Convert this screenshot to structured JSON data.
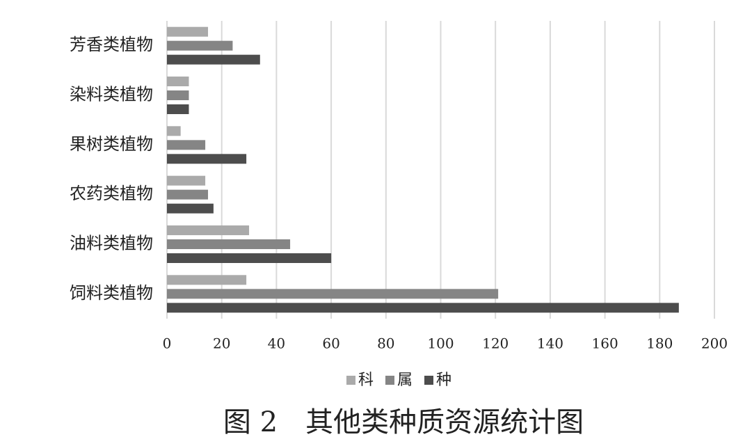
{
  "chart_data": {
    "type": "barh",
    "title": "图 2　其他类种质资源统计图",
    "categories": [
      "芳香类植物",
      "染料类植物",
      "果树类植物",
      "农药类植物",
      "油料类植物",
      "饲料类植物"
    ],
    "series": [
      {
        "name": "科",
        "color": "#aaaaaa",
        "values": [
          15,
          8,
          5,
          14,
          30,
          29
        ]
      },
      {
        "name": "属",
        "color": "#858585",
        "values": [
          24,
          8,
          14,
          15,
          45,
          121
        ]
      },
      {
        "name": "种",
        "color": "#4d4d4d",
        "values": [
          34,
          8,
          29,
          17,
          60,
          187
        ]
      }
    ],
    "xlim": [
      0,
      200
    ],
    "xticks": [
      0,
      20,
      40,
      60,
      80,
      100,
      120,
      140,
      160,
      180,
      200
    ],
    "grid": true,
    "legend": "bottom"
  }
}
